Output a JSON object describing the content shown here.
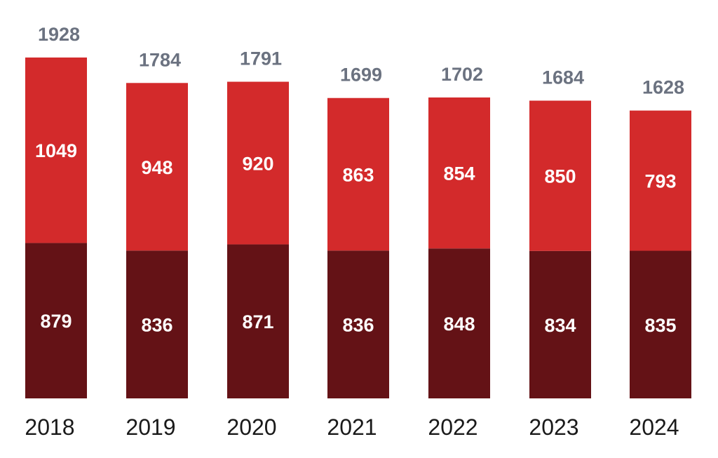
{
  "chart_data": {
    "type": "bar",
    "stacked": true,
    "categories": [
      "2018",
      "2019",
      "2020",
      "2021",
      "2022",
      "2023",
      "2024"
    ],
    "series": [
      {
        "values": [
          879,
          836,
          871,
          836,
          848,
          834,
          835
        ],
        "color": "#641216"
      },
      {
        "values": [
          1049,
          948,
          920,
          863,
          854,
          850,
          793
        ],
        "color": "#d32a2b"
      }
    ],
    "totals": [
      1928,
      1784,
      1791,
      1699,
      1702,
      1684,
      1628
    ],
    "ylim": [
      0,
      1928
    ],
    "grid": false,
    "legend": "none",
    "total_label_color": "#6b7280",
    "segment_label_color": "#ffffff"
  }
}
